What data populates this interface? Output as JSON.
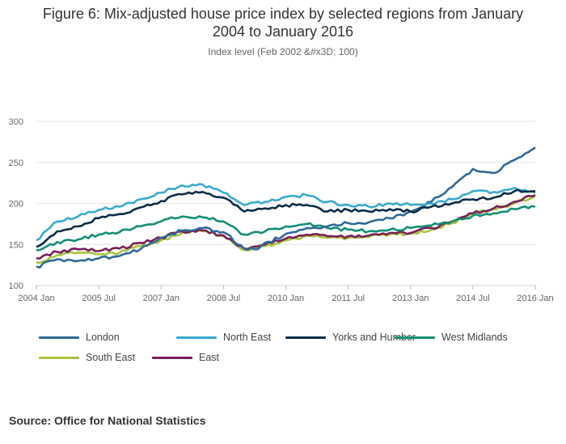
{
  "title_line1": "Figure 6: Mix-adjusted house price index by selected regions from January",
  "title_line2": "2004 to January 2016",
  "subtitle": "Index level (Feb 2002 &#x3D; 100)",
  "source": "Source: Office for National Statistics",
  "chart_data": {
    "type": "line",
    "title": "Figure 6: Mix-adjusted house price index by selected regions from January 2004 to January 2016",
    "subtitle": "Index level (Feb 2002 &#x3D; 100)",
    "xlabel": "",
    "ylabel": "",
    "x_start": "2004 Jan",
    "x_end": "2016 Jan",
    "ylim": [
      100,
      300
    ],
    "yticks": [
      100,
      150,
      200,
      250,
      300
    ],
    "xtick_labels": [
      "2004 Jan",
      "2005 Jul",
      "2007 Jan",
      "2008 Jul",
      "2010 Jan",
      "2011 Jul",
      "2013 Jan",
      "2014 Jul",
      "2016 Jan"
    ],
    "grid": true,
    "legend_position": "bottom",
    "series": [
      {
        "name": "London",
        "color": "#2e6a9a",
        "keypoints": [
          {
            "x": "2004 Jan",
            "y": 123
          },
          {
            "x": "2004 Feb",
            "y": 122
          },
          {
            "x": "2004 Apr",
            "y": 129
          },
          {
            "x": "2004 Jul",
            "y": 132
          },
          {
            "x": "2005 Jan",
            "y": 130
          },
          {
            "x": "2005 Jul",
            "y": 133
          },
          {
            "x": "2006 Jan",
            "y": 136
          },
          {
            "x": "2006 Jul",
            "y": 144
          },
          {
            "x": "2007 Jan",
            "y": 158
          },
          {
            "x": "2007 Jul",
            "y": 167
          },
          {
            "x": "2008 Jan",
            "y": 170
          },
          {
            "x": "2008 Jul",
            "y": 165
          },
          {
            "x": "2009 Jan",
            "y": 145
          },
          {
            "x": "2009 Apr",
            "y": 144
          },
          {
            "x": "2010 Jan",
            "y": 163
          },
          {
            "x": "2010 Jul",
            "y": 170
          },
          {
            "x": "2011 Jan",
            "y": 172
          },
          {
            "x": "2011 Jul",
            "y": 176
          },
          {
            "x": "2012 Jan",
            "y": 177
          },
          {
            "x": "2012 Jul",
            "y": 182
          },
          {
            "x": "2013 Jan",
            "y": 190
          },
          {
            "x": "2013 Jul",
            "y": 202
          },
          {
            "x": "2014 Jan",
            "y": 220
          },
          {
            "x": "2014 Jul",
            "y": 242
          },
          {
            "x": "2015 Jan",
            "y": 237
          },
          {
            "x": "2015 Jul",
            "y": 253
          },
          {
            "x": "2016 Jan",
            "y": 268
          }
        ]
      },
      {
        "name": "North East",
        "color": "#3aaacf",
        "keypoints": [
          {
            "x": "2004 Jan",
            "y": 155
          },
          {
            "x": "2004 Jul",
            "y": 178
          },
          {
            "x": "2005 Jan",
            "y": 184
          },
          {
            "x": "2005 Jul",
            "y": 192
          },
          {
            "x": "2006 Jan",
            "y": 196
          },
          {
            "x": "2006 Jul",
            "y": 205
          },
          {
            "x": "2007 Jan",
            "y": 213
          },
          {
            "x": "2007 Jul",
            "y": 222
          },
          {
            "x": "2008 Jan",
            "y": 223
          },
          {
            "x": "2008 Jul",
            "y": 213
          },
          {
            "x": "2009 Jan",
            "y": 198
          },
          {
            "x": "2009 Jul",
            "y": 202
          },
          {
            "x": "2010 Jan",
            "y": 208
          },
          {
            "x": "2010 Jul",
            "y": 210
          },
          {
            "x": "2011 Jan",
            "y": 202
          },
          {
            "x": "2011 Jul",
            "y": 198
          },
          {
            "x": "2012 Jan",
            "y": 196
          },
          {
            "x": "2012 Jul",
            "y": 200
          },
          {
            "x": "2013 Jan",
            "y": 198
          },
          {
            "x": "2013 Jul",
            "y": 200
          },
          {
            "x": "2014 Jan",
            "y": 205
          },
          {
            "x": "2014 Jul",
            "y": 215
          },
          {
            "x": "2015 Jan",
            "y": 214
          },
          {
            "x": "2015 Jul",
            "y": 219
          },
          {
            "x": "2016 Jan",
            "y": 213
          }
        ]
      },
      {
        "name": "Yorks and Humber",
        "color": "#0c2d48",
        "keypoints": [
          {
            "x": "2004 Jan",
            "y": 147
          },
          {
            "x": "2004 Jul",
            "y": 166
          },
          {
            "x": "2005 Jan",
            "y": 172
          },
          {
            "x": "2005 Jul",
            "y": 182
          },
          {
            "x": "2006 Jan",
            "y": 187
          },
          {
            "x": "2006 Jul",
            "y": 195
          },
          {
            "x": "2007 Jan",
            "y": 203
          },
          {
            "x": "2007 Jul",
            "y": 211
          },
          {
            "x": "2008 Jan",
            "y": 214
          },
          {
            "x": "2008 Jul",
            "y": 207
          },
          {
            "x": "2009 Jan",
            "y": 190
          },
          {
            "x": "2009 Jul",
            "y": 194
          },
          {
            "x": "2010 Jan",
            "y": 198
          },
          {
            "x": "2010 Jul",
            "y": 198
          },
          {
            "x": "2011 Jan",
            "y": 190
          },
          {
            "x": "2011 Jul",
            "y": 192
          },
          {
            "x": "2012 Jan",
            "y": 190
          },
          {
            "x": "2012 Jul",
            "y": 193
          },
          {
            "x": "2013 Jan",
            "y": 190
          },
          {
            "x": "2013 Jul",
            "y": 196
          },
          {
            "x": "2014 Jan",
            "y": 200
          },
          {
            "x": "2014 Jul",
            "y": 205
          },
          {
            "x": "2015 Jan",
            "y": 207
          },
          {
            "x": "2015 Jul",
            "y": 215
          },
          {
            "x": "2016 Jan",
            "y": 215
          }
        ]
      },
      {
        "name": "West Midlands",
        "color": "#138f77",
        "keypoints": [
          {
            "x": "2004 Jan",
            "y": 143
          },
          {
            "x": "2004 Jul",
            "y": 153
          },
          {
            "x": "2005 Jan",
            "y": 156
          },
          {
            "x": "2005 Jul",
            "y": 162
          },
          {
            "x": "2006 Jan",
            "y": 165
          },
          {
            "x": "2006 Jul",
            "y": 172
          },
          {
            "x": "2007 Jan",
            "y": 178
          },
          {
            "x": "2007 Jul",
            "y": 184
          },
          {
            "x": "2008 Jan",
            "y": 183
          },
          {
            "x": "2008 Jul",
            "y": 178
          },
          {
            "x": "2009 Jan",
            "y": 162
          },
          {
            "x": "2009 Jul",
            "y": 166
          },
          {
            "x": "2010 Jan",
            "y": 172
          },
          {
            "x": "2010 Jul",
            "y": 175
          },
          {
            "x": "2011 Jan",
            "y": 170
          },
          {
            "x": "2011 Jul",
            "y": 168
          },
          {
            "x": "2012 Jan",
            "y": 166
          },
          {
            "x": "2012 Jul",
            "y": 168
          },
          {
            "x": "2013 Jan",
            "y": 170
          },
          {
            "x": "2013 Jul",
            "y": 173
          },
          {
            "x": "2014 Jan",
            "y": 178
          },
          {
            "x": "2014 Jul",
            "y": 185
          },
          {
            "x": "2015 Jan",
            "y": 188
          },
          {
            "x": "2015 Jul",
            "y": 193
          },
          {
            "x": "2016 Jan",
            "y": 196
          }
        ]
      },
      {
        "name": "South East",
        "color": "#a8c43c",
        "keypoints": [
          {
            "x": "2004 Jan",
            "y": 128
          },
          {
            "x": "2004 Jul",
            "y": 137
          },
          {
            "x": "2005 Jan",
            "y": 140
          },
          {
            "x": "2005 Jul",
            "y": 138
          },
          {
            "x": "2006 Jan",
            "y": 140
          },
          {
            "x": "2006 Jul",
            "y": 148
          },
          {
            "x": "2007 Jan",
            "y": 155
          },
          {
            "x": "2007 Jul",
            "y": 164
          },
          {
            "x": "2008 Jan",
            "y": 166
          },
          {
            "x": "2008 Jul",
            "y": 160
          },
          {
            "x": "2009 Jan",
            "y": 143
          },
          {
            "x": "2009 Jul",
            "y": 148
          },
          {
            "x": "2010 Jan",
            "y": 155
          },
          {
            "x": "2010 Jul",
            "y": 160
          },
          {
            "x": "2011 Jan",
            "y": 158
          },
          {
            "x": "2011 Jul",
            "y": 158
          },
          {
            "x": "2012 Jan",
            "y": 159
          },
          {
            "x": "2012 Jul",
            "y": 162
          },
          {
            "x": "2013 Jan",
            "y": 163
          },
          {
            "x": "2013 Jul",
            "y": 168
          },
          {
            "x": "2014 Jan",
            "y": 176
          },
          {
            "x": "2014 Jul",
            "y": 188
          },
          {
            "x": "2015 Jan",
            "y": 193
          },
          {
            "x": "2015 Jul",
            "y": 200
          },
          {
            "x": "2016 Jan",
            "y": 209
          }
        ]
      },
      {
        "name": "East",
        "color": "#7a1f58",
        "keypoints": [
          {
            "x": "2004 Jan",
            "y": 133
          },
          {
            "x": "2004 Jul",
            "y": 141
          },
          {
            "x": "2005 Jan",
            "y": 144
          },
          {
            "x": "2005 Jul",
            "y": 142
          },
          {
            "x": "2006 Jan",
            "y": 145
          },
          {
            "x": "2006 Jul",
            "y": 152
          },
          {
            "x": "2007 Jan",
            "y": 158
          },
          {
            "x": "2007 Jul",
            "y": 166
          },
          {
            "x": "2008 Jan",
            "y": 167
          },
          {
            "x": "2008 Jul",
            "y": 161
          },
          {
            "x": "2009 Jan",
            "y": 145
          },
          {
            "x": "2009 Jul",
            "y": 150
          },
          {
            "x": "2010 Jan",
            "y": 157
          },
          {
            "x": "2010 Jul",
            "y": 162
          },
          {
            "x": "2011 Jan",
            "y": 160
          },
          {
            "x": "2011 Jul",
            "y": 160
          },
          {
            "x": "2012 Jan",
            "y": 161
          },
          {
            "x": "2012 Jul",
            "y": 164
          },
          {
            "x": "2013 Jan",
            "y": 164
          },
          {
            "x": "2013 Jul",
            "y": 170
          },
          {
            "x": "2014 Jan",
            "y": 178
          },
          {
            "x": "2014 Jul",
            "y": 188
          },
          {
            "x": "2015 Jan",
            "y": 194
          },
          {
            "x": "2015 Jul",
            "y": 202
          },
          {
            "x": "2016 Jan",
            "y": 210
          }
        ]
      }
    ]
  }
}
